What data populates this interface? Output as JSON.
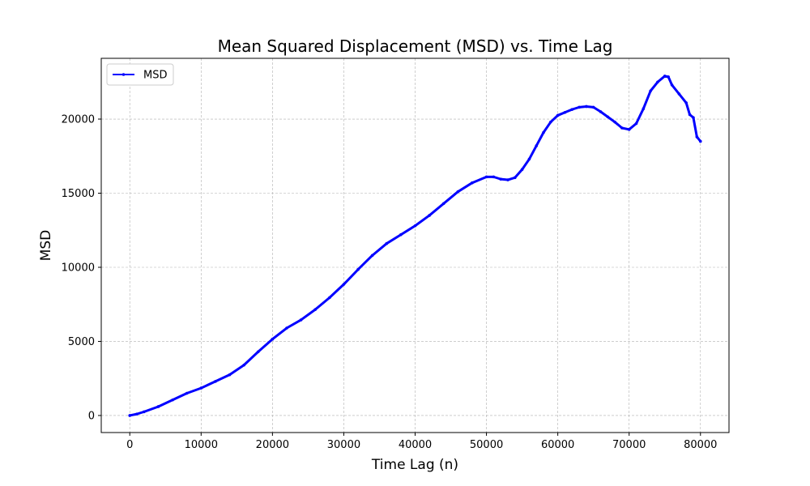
{
  "chart_data": {
    "type": "line",
    "title": "Mean Squared Displacement (MSD) vs. Time Lag",
    "xlabel": "Time Lag (n)",
    "ylabel": "MSD",
    "xlim": [
      -4000,
      84000
    ],
    "ylim": [
      -1150,
      24100
    ],
    "xticks": [
      0,
      10000,
      20000,
      30000,
      40000,
      50000,
      60000,
      70000,
      80000
    ],
    "yticks": [
      0,
      5000,
      10000,
      15000,
      20000
    ],
    "grid": true,
    "legend_position": "upper-left",
    "series": [
      {
        "name": "MSD",
        "color": "#0000ff",
        "x": [
          0,
          1000,
          2000,
          4000,
          6000,
          8000,
          10000,
          12000,
          14000,
          16000,
          18000,
          20000,
          22000,
          24000,
          26000,
          28000,
          30000,
          32000,
          34000,
          36000,
          38000,
          40000,
          42000,
          44000,
          46000,
          48000,
          50000,
          51000,
          52000,
          53000,
          54000,
          55000,
          56000,
          57000,
          58000,
          59000,
          60000,
          61000,
          62000,
          63000,
          64000,
          65000,
          66000,
          67000,
          68000,
          69000,
          70000,
          71000,
          72000,
          73000,
          74000,
          75000,
          75500,
          76000,
          77000,
          78000,
          78500,
          79000,
          79500,
          80000
        ],
        "y": [
          0,
          100,
          250,
          600,
          1050,
          1500,
          1850,
          2300,
          2750,
          3400,
          4300,
          5150,
          5900,
          6450,
          7150,
          7950,
          8850,
          9850,
          10800,
          11600,
          12200,
          12800,
          13500,
          14300,
          15100,
          15700,
          16100,
          16100,
          15950,
          15900,
          16050,
          16600,
          17300,
          18200,
          19100,
          19800,
          20250,
          20450,
          20650,
          20800,
          20850,
          20800,
          20500,
          20150,
          19800,
          19400,
          19300,
          19700,
          20700,
          21900,
          22500,
          22900,
          22850,
          22300,
          21700,
          21100,
          20300,
          20100,
          18800,
          18500
        ]
      }
    ]
  }
}
